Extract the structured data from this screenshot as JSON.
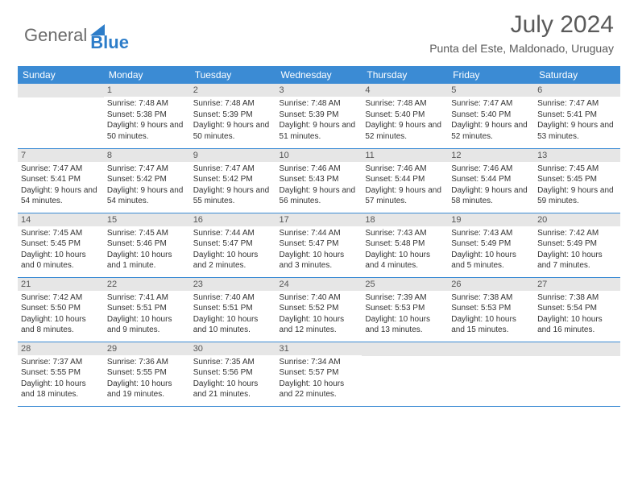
{
  "brand": {
    "part1": "General",
    "part2": "Blue"
  },
  "title": "July 2024",
  "location": "Punta del Este, Maldonado, Uruguay",
  "colors": {
    "header_bg": "#3b8bd4",
    "day_bg": "#e6e6e6",
    "border": "#3b8bd4",
    "text": "#333333",
    "brand_gray": "#6b6b6b",
    "brand_blue": "#2d7dc9"
  },
  "calendar": {
    "day_headers": [
      "Sunday",
      "Monday",
      "Tuesday",
      "Wednesday",
      "Thursday",
      "Friday",
      "Saturday"
    ],
    "first_weekday_index": 1,
    "num_days": 31,
    "days": {
      "1": {
        "sunrise": "7:48 AM",
        "sunset": "5:38 PM",
        "daylight": "9 hours and 50 minutes."
      },
      "2": {
        "sunrise": "7:48 AM",
        "sunset": "5:39 PM",
        "daylight": "9 hours and 50 minutes."
      },
      "3": {
        "sunrise": "7:48 AM",
        "sunset": "5:39 PM",
        "daylight": "9 hours and 51 minutes."
      },
      "4": {
        "sunrise": "7:48 AM",
        "sunset": "5:40 PM",
        "daylight": "9 hours and 52 minutes."
      },
      "5": {
        "sunrise": "7:47 AM",
        "sunset": "5:40 PM",
        "daylight": "9 hours and 52 minutes."
      },
      "6": {
        "sunrise": "7:47 AM",
        "sunset": "5:41 PM",
        "daylight": "9 hours and 53 minutes."
      },
      "7": {
        "sunrise": "7:47 AM",
        "sunset": "5:41 PM",
        "daylight": "9 hours and 54 minutes."
      },
      "8": {
        "sunrise": "7:47 AM",
        "sunset": "5:42 PM",
        "daylight": "9 hours and 54 minutes."
      },
      "9": {
        "sunrise": "7:47 AM",
        "sunset": "5:42 PM",
        "daylight": "9 hours and 55 minutes."
      },
      "10": {
        "sunrise": "7:46 AM",
        "sunset": "5:43 PM",
        "daylight": "9 hours and 56 minutes."
      },
      "11": {
        "sunrise": "7:46 AM",
        "sunset": "5:44 PM",
        "daylight": "9 hours and 57 minutes."
      },
      "12": {
        "sunrise": "7:46 AM",
        "sunset": "5:44 PM",
        "daylight": "9 hours and 58 minutes."
      },
      "13": {
        "sunrise": "7:45 AM",
        "sunset": "5:45 PM",
        "daylight": "9 hours and 59 minutes."
      },
      "14": {
        "sunrise": "7:45 AM",
        "sunset": "5:45 PM",
        "daylight": "10 hours and 0 minutes."
      },
      "15": {
        "sunrise": "7:45 AM",
        "sunset": "5:46 PM",
        "daylight": "10 hours and 1 minute."
      },
      "16": {
        "sunrise": "7:44 AM",
        "sunset": "5:47 PM",
        "daylight": "10 hours and 2 minutes."
      },
      "17": {
        "sunrise": "7:44 AM",
        "sunset": "5:47 PM",
        "daylight": "10 hours and 3 minutes."
      },
      "18": {
        "sunrise": "7:43 AM",
        "sunset": "5:48 PM",
        "daylight": "10 hours and 4 minutes."
      },
      "19": {
        "sunrise": "7:43 AM",
        "sunset": "5:49 PM",
        "daylight": "10 hours and 5 minutes."
      },
      "20": {
        "sunrise": "7:42 AM",
        "sunset": "5:49 PM",
        "daylight": "10 hours and 7 minutes."
      },
      "21": {
        "sunrise": "7:42 AM",
        "sunset": "5:50 PM",
        "daylight": "10 hours and 8 minutes."
      },
      "22": {
        "sunrise": "7:41 AM",
        "sunset": "5:51 PM",
        "daylight": "10 hours and 9 minutes."
      },
      "23": {
        "sunrise": "7:40 AM",
        "sunset": "5:51 PM",
        "daylight": "10 hours and 10 minutes."
      },
      "24": {
        "sunrise": "7:40 AM",
        "sunset": "5:52 PM",
        "daylight": "10 hours and 12 minutes."
      },
      "25": {
        "sunrise": "7:39 AM",
        "sunset": "5:53 PM",
        "daylight": "10 hours and 13 minutes."
      },
      "26": {
        "sunrise": "7:38 AM",
        "sunset": "5:53 PM",
        "daylight": "10 hours and 15 minutes."
      },
      "27": {
        "sunrise": "7:38 AM",
        "sunset": "5:54 PM",
        "daylight": "10 hours and 16 minutes."
      },
      "28": {
        "sunrise": "7:37 AM",
        "sunset": "5:55 PM",
        "daylight": "10 hours and 18 minutes."
      },
      "29": {
        "sunrise": "7:36 AM",
        "sunset": "5:55 PM",
        "daylight": "10 hours and 19 minutes."
      },
      "30": {
        "sunrise": "7:35 AM",
        "sunset": "5:56 PM",
        "daylight": "10 hours and 21 minutes."
      },
      "31": {
        "sunrise": "7:34 AM",
        "sunset": "5:57 PM",
        "daylight": "10 hours and 22 minutes."
      }
    },
    "labels": {
      "sunrise": "Sunrise:",
      "sunset": "Sunset:",
      "daylight": "Daylight:"
    }
  }
}
